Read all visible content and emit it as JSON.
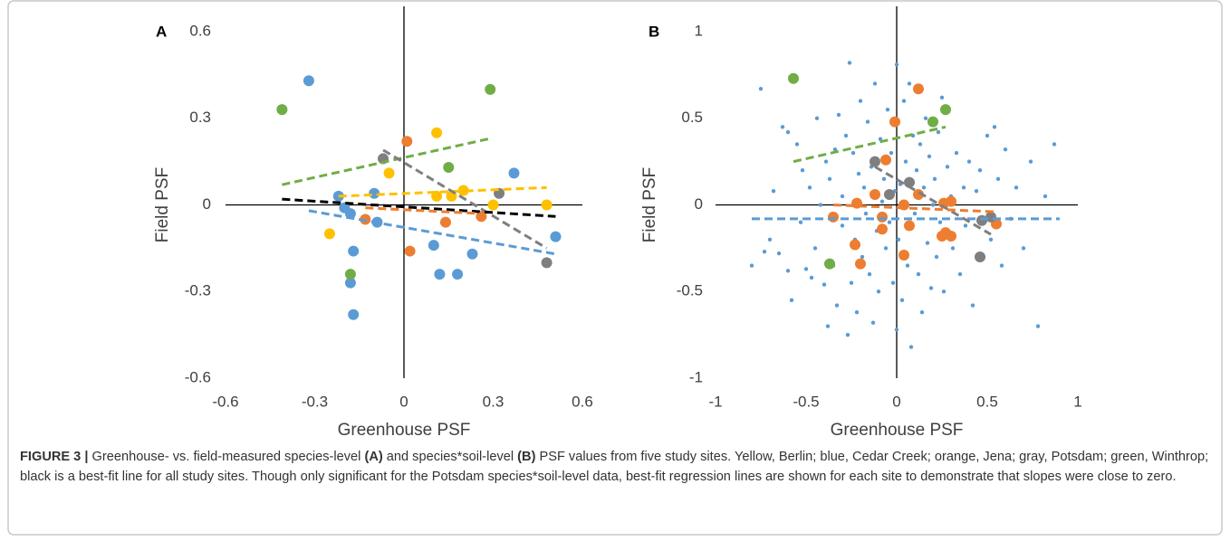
{
  "chart_data": [
    {
      "type": "scatter",
      "label": "A",
      "xlabel": "Greenhouse PSF",
      "ylabel": "Field PSF",
      "xlim": [
        -0.6,
        0.6
      ],
      "ylim": [
        -0.6,
        0.6
      ],
      "xticks": [
        -0.6,
        -0.3,
        0,
        0.3,
        0.6
      ],
      "yticks": [
        -0.6,
        -0.3,
        0,
        0.3,
        0.6
      ],
      "series": [
        {
          "color": "#5b9bd5",
          "marker": "large",
          "x": [
            -0.32,
            -0.22,
            -0.2,
            -0.18,
            -0.1,
            -0.17,
            -0.18,
            -0.17,
            -0.09,
            0.1,
            0.12,
            0.18,
            0.23,
            0.37,
            0.51
          ],
          "y": [
            0.43,
            0.03,
            -0.01,
            -0.03,
            0.04,
            -0.16,
            -0.27,
            -0.38,
            -0.06,
            -0.14,
            -0.24,
            -0.24,
            -0.17,
            0.11,
            -0.11
          ]
        },
        {
          "color": "#ed7d31",
          "marker": "large",
          "x": [
            0.01,
            0.02,
            0.14,
            0.26,
            -0.13
          ],
          "y": [
            0.22,
            -0.16,
            -0.06,
            -0.04,
            -0.05
          ]
        },
        {
          "color": "#ffc000",
          "marker": "large",
          "x": [
            0.11,
            -0.05,
            0.11,
            0.16,
            0.2,
            0.3,
            0.48,
            -0.25
          ],
          "y": [
            0.25,
            0.11,
            0.03,
            0.03,
            0.05,
            0.0,
            0.0,
            -0.1
          ]
        },
        {
          "color": "#7f7f7f",
          "marker": "large",
          "x": [
            -0.07,
            0.32,
            0.48
          ],
          "y": [
            0.16,
            0.04,
            -0.2
          ]
        },
        {
          "color": "#70ad47",
          "marker": "large",
          "x": [
            -0.41,
            0.29,
            0.15,
            -0.18
          ],
          "y": [
            0.33,
            0.4,
            0.13,
            -0.24
          ]
        }
      ],
      "trendlines": [
        {
          "color": "#70ad47",
          "x": [
            -0.41,
            0.29
          ],
          "y": [
            0.07,
            0.23
          ]
        },
        {
          "color": "#ffc000",
          "x": [
            -0.22,
            0.48
          ],
          "y": [
            0.03,
            0.06
          ]
        },
        {
          "color": "#7f7f7f",
          "x": [
            -0.07,
            0.48
          ],
          "y": [
            0.19,
            -0.15
          ]
        },
        {
          "color": "#000000",
          "x": [
            -0.41,
            0.51
          ],
          "y": [
            0.02,
            -0.04
          ]
        },
        {
          "color": "#ed7d31",
          "x": [
            -0.13,
            0.26
          ],
          "y": [
            -0.01,
            -0.03
          ]
        },
        {
          "color": "#5b9bd5",
          "x": [
            -0.32,
            0.51
          ],
          "y": [
            -0.02,
            -0.17
          ]
        }
      ]
    },
    {
      "type": "scatter",
      "label": "B",
      "xlabel": "Greenhouse PSF",
      "ylabel": "Field PSF",
      "xlim": [
        -1,
        1
      ],
      "ylim": [
        -1,
        1
      ],
      "xticks": [
        -1,
        -0.5,
        0,
        0.5,
        1
      ],
      "yticks": [
        -1,
        -0.5,
        0,
        0.5,
        1
      ],
      "series": [
        {
          "color": "#5b9bd5",
          "marker": "small",
          "x": [
            -0.8,
            -0.75,
            -0.73,
            -0.7,
            -0.68,
            -0.65,
            -0.63,
            -0.6,
            -0.6,
            -0.58,
            -0.55,
            -0.53,
            -0.52,
            -0.5,
            -0.48,
            -0.47,
            -0.45,
            -0.44,
            -0.42,
            -0.4,
            -0.39,
            -0.38,
            -0.37,
            -0.35,
            -0.34,
            -0.33,
            -0.32,
            -0.3,
            -0.3,
            -0.28,
            -0.27,
            -0.26,
            -0.25,
            -0.24,
            -0.23,
            -0.22,
            -0.21,
            -0.2,
            -0.19,
            -0.18,
            -0.17,
            -0.16,
            -0.15,
            -0.14,
            -0.13,
            -0.12,
            -0.11,
            -0.1,
            -0.09,
            -0.08,
            -0.07,
            -0.06,
            -0.05,
            -0.04,
            -0.03,
            -0.02,
            -0.01,
            0,
            0,
            0.01,
            0.02,
            0.03,
            0.04,
            0.05,
            0.06,
            0.07,
            0.08,
            0.09,
            0.1,
            0.11,
            0.12,
            0.13,
            0.14,
            0.15,
            0.16,
            0.17,
            0.18,
            0.19,
            0.2,
            0.21,
            0.22,
            0.23,
            0.24,
            0.25,
            0.26,
            0.28,
            0.3,
            0.31,
            0.33,
            0.35,
            0.37,
            0.38,
            0.4,
            0.42,
            0.44,
            0.46,
            0.48,
            0.5,
            0.52,
            0.54,
            0.56,
            0.58,
            0.6,
            0.63,
            0.66,
            0.7,
            0.74,
            0.78,
            0.82,
            0.87
          ],
          "y": [
            -0.35,
            0.67,
            -0.27,
            -0.2,
            0.08,
            -0.28,
            0.45,
            -0.38,
            0.42,
            -0.55,
            0.35,
            -0.1,
            0.2,
            -0.37,
            0.1,
            -0.42,
            -0.25,
            0.5,
            0.0,
            -0.46,
            0.25,
            -0.7,
            0.15,
            -0.35,
            0.32,
            -0.58,
            0.52,
            -0.12,
            0.05,
            0.4,
            -0.75,
            0.82,
            -0.45,
            0.3,
            -0.2,
            -0.62,
            0.18,
            0.6,
            -0.3,
            0.1,
            -0.05,
            0.48,
            -0.4,
            0.22,
            -0.68,
            0.7,
            -0.15,
            -0.5,
            0.38,
            0.02,
            0.15,
            -0.25,
            0.55,
            -0.1,
            0.3,
            -0.45,
            0.08,
            0.81,
            -0.72,
            -0.2,
            0.12,
            -0.55,
            0.6,
            0.25,
            -0.35,
            0.7,
            -0.82,
            0.4,
            -0.05,
            0.2,
            -0.4,
            0.35,
            -0.62,
            0.1,
            0.5,
            -0.22,
            0.28,
            -0.48,
            0.0,
            0.15,
            -0.3,
            0.42,
            -0.1,
            0.62,
            -0.5,
            0.22,
            0.05,
            -0.25,
            0.3,
            -0.4,
            0.1,
            -0.12,
            0.25,
            -0.58,
            0.08,
            0.2,
            -0.3,
            0.4,
            -0.2,
            0.45,
            0.15,
            -0.35,
            0.32,
            -0.08,
            0.1,
            -0.25,
            0.25,
            -0.7,
            0.05,
            0.35
          ]
        },
        {
          "color": "#ed7d31",
          "marker": "large",
          "x": [
            0.12,
            -0.01,
            -0.06,
            -0.22,
            -0.2,
            -0.23,
            -0.35,
            -0.12,
            -0.08,
            -0.08,
            0.04,
            0.04,
            0.12,
            0.07,
            0.26,
            0.3,
            0.25,
            0.3,
            0.27,
            0.55
          ],
          "y": [
            0.67,
            0.48,
            0.26,
            0.01,
            -0.34,
            -0.23,
            -0.07,
            0.06,
            -0.07,
            -0.14,
            -0.29,
            0.0,
            0.06,
            -0.12,
            0.01,
            0.02,
            -0.18,
            -0.18,
            -0.16,
            -0.11
          ]
        },
        {
          "color": "#7f7f7f",
          "marker": "large",
          "x": [
            -0.12,
            -0.04,
            0.07,
            0.47,
            0.52,
            0.46
          ],
          "y": [
            0.25,
            0.06,
            0.13,
            -0.09,
            -0.07,
            -0.3
          ]
        },
        {
          "color": "#70ad47",
          "marker": "large",
          "x": [
            -0.57,
            0.2,
            0.27,
            -0.37
          ],
          "y": [
            0.73,
            0.48,
            0.55,
            -0.34
          ]
        }
      ],
      "trendlines": [
        {
          "color": "#5b9bd5",
          "x": [
            -0.8,
            0.9
          ],
          "y": [
            -0.08,
            -0.08
          ]
        },
        {
          "color": "#70ad47",
          "x": [
            -0.57,
            0.27
          ],
          "y": [
            0.25,
            0.45
          ]
        },
        {
          "color": "#7f7f7f",
          "x": [
            -0.12,
            0.52
          ],
          "y": [
            0.22,
            -0.17
          ]
        },
        {
          "color": "#ed7d31",
          "x": [
            -0.35,
            0.55
          ],
          "y": [
            0.0,
            -0.04
          ]
        }
      ]
    }
  ],
  "caption": {
    "label": "FIGURE 3 |",
    "parts": [
      "Greenhouse- vs. field-measured species-level ",
      "(A)",
      " and species*soil-level ",
      "(B)",
      " PSF values from five study sites. Yellow, Berlin; blue, Cedar Creek; orange, Jena; gray, Potsdam; green, Winthrop; black is a best-fit line for all study sites. Though only significant for the Potsdam species*soil-level data, best-fit regression lines are shown for each site to demonstrate that slopes were close to zero."
    ]
  }
}
